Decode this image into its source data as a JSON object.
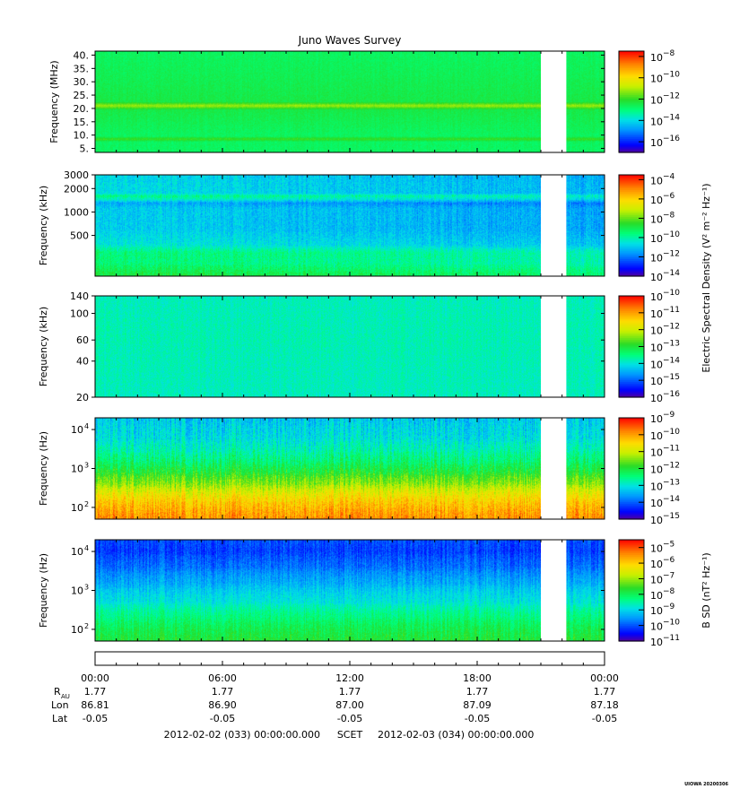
{
  "title": "Juno Waves Survey",
  "watermark": "UIOWA 20200306",
  "shared_colorbar_label": "Electric Spectral Density (V² m⁻² Hz⁻¹)",
  "gap": {
    "start_hour": 21.0,
    "end_hour": 22.2
  },
  "chart_data": [
    {
      "type": "heatmap",
      "ylabel": "Frequency (MHz)",
      "yscale": "linear",
      "ylim": [
        3.5,
        41.5
      ],
      "yticks": [
        {
          "v": 5,
          "t": "5."
        },
        {
          "v": 10,
          "t": "10."
        },
        {
          "v": 15,
          "t": "15."
        },
        {
          "v": 20,
          "t": "20."
        },
        {
          "v": 25,
          "t": "25."
        },
        {
          "v": 30,
          "t": "30."
        },
        {
          "v": 35,
          "t": "35."
        },
        {
          "v": 40,
          "t": "40."
        }
      ],
      "colorbar": {
        "exponents": [
          -16,
          -14,
          -12,
          -10,
          -8
        ],
        "min_exp": -17,
        "max_exp": -7.5,
        "label": ""
      },
      "profile": [
        {
          "f": 3.5,
          "c": 0.45
        },
        {
          "f": 7.5,
          "c": 0.45
        },
        {
          "f": 8.5,
          "c": 0.54
        },
        {
          "f": 9.5,
          "c": 0.45
        },
        {
          "f": 19.5,
          "c": 0.48
        },
        {
          "f": 21.0,
          "c": 0.62
        },
        {
          "f": 22.5,
          "c": 0.48
        },
        {
          "f": 41.5,
          "c": 0.45
        }
      ],
      "noise": 0.02,
      "time_trend": 0.0,
      "vstreak": 0.01
    },
    {
      "type": "heatmap",
      "ylabel": "Frequency (kHz)",
      "yscale": "log",
      "ylim": [
        150,
        3000
      ],
      "yticks": [
        {
          "v": 500,
          "t": "500"
        },
        {
          "v": 1000,
          "t": "1000"
        },
        {
          "v": 2000,
          "t": "2000"
        },
        {
          "v": 3000,
          "t": "3000"
        }
      ],
      "colorbar": {
        "exponents": [
          -14,
          -12,
          -10,
          -8,
          -6,
          -4
        ],
        "min_exp": -14,
        "max_exp": -3.5,
        "label": ""
      },
      "profile": [
        {
          "f": 150,
          "c": 0.5
        },
        {
          "f": 220,
          "c": 0.43
        },
        {
          "f": 300,
          "c": 0.43
        },
        {
          "f": 380,
          "c": 0.34
        },
        {
          "f": 600,
          "c": 0.3
        },
        {
          "f": 1100,
          "c": 0.3
        },
        {
          "f": 1300,
          "c": 0.25
        },
        {
          "f": 1450,
          "c": 0.36
        },
        {
          "f": 1600,
          "c": 0.42
        },
        {
          "f": 1750,
          "c": 0.32
        },
        {
          "f": 2200,
          "c": 0.32
        },
        {
          "f": 3000,
          "c": 0.31
        }
      ],
      "noise": 0.045,
      "time_trend": -0.06,
      "vstreak": 0.03
    },
    {
      "type": "heatmap",
      "ylabel": "Frequency (kHz)",
      "yscale": "log",
      "ylim": [
        20,
        140
      ],
      "yticks": [
        {
          "v": 20,
          "t": "20"
        },
        {
          "v": 40,
          "t": "40"
        },
        {
          "v": 60,
          "t": "60"
        },
        {
          "v": 100,
          "t": "100"
        },
        {
          "v": 140,
          "t": "140"
        }
      ],
      "colorbar": {
        "exponents": [
          -16,
          -15,
          -14,
          -13,
          -12,
          -11,
          -10
        ],
        "min_exp": -16,
        "max_exp": -10,
        "label": ""
      },
      "profile": [
        {
          "f": 20,
          "c": 0.36
        },
        {
          "f": 60,
          "c": 0.37
        },
        {
          "f": 140,
          "c": 0.36
        }
      ],
      "noise": 0.035,
      "time_trend": 0.0,
      "vstreak": 0.02
    },
    {
      "type": "heatmap",
      "ylabel": "Frequency (Hz)",
      "yscale": "log",
      "ylim": [
        50,
        20000
      ],
      "yticks": [
        {
          "v": 100,
          "t": "10",
          "sup": "2"
        },
        {
          "v": 1000,
          "t": "10",
          "sup": "3"
        },
        {
          "v": 10000,
          "t": "10",
          "sup": "4"
        }
      ],
      "colorbar": {
        "exponents": [
          -15,
          -14,
          -13,
          -12,
          -11,
          -10,
          -9
        ],
        "min_exp": -15,
        "max_exp": -9,
        "label": ""
      },
      "profile": [
        {
          "f": 50,
          "c": 0.85
        },
        {
          "f": 100,
          "c": 0.8
        },
        {
          "f": 200,
          "c": 0.72
        },
        {
          "f": 400,
          "c": 0.6
        },
        {
          "f": 800,
          "c": 0.5
        },
        {
          "f": 1500,
          "c": 0.43
        },
        {
          "f": 3000,
          "c": 0.37
        },
        {
          "f": 6000,
          "c": 0.32
        },
        {
          "f": 20000,
          "c": 0.28
        }
      ],
      "noise": 0.055,
      "time_trend": 0.0,
      "vstreak": 0.06
    },
    {
      "type": "heatmap",
      "ylabel": "Frequency (Hz)",
      "yscale": "log",
      "ylim": [
        50,
        20000
      ],
      "yticks": [
        {
          "v": 100,
          "t": "10",
          "sup": "2"
        },
        {
          "v": 1000,
          "t": "10",
          "sup": "3"
        },
        {
          "v": 10000,
          "t": "10",
          "sup": "4"
        }
      ],
      "colorbar": {
        "exponents": [
          -11,
          -10,
          -9,
          -8,
          -7,
          -6,
          -5
        ],
        "min_exp": -11,
        "max_exp": -4.5,
        "label": "B SD (nT² Hz⁻¹)"
      },
      "profile": [
        {
          "f": 50,
          "c": 0.5
        },
        {
          "f": 100,
          "c": 0.47
        },
        {
          "f": 200,
          "c": 0.42
        },
        {
          "f": 500,
          "c": 0.33
        },
        {
          "f": 1500,
          "c": 0.25
        },
        {
          "f": 4000,
          "c": 0.18
        },
        {
          "f": 10000,
          "c": 0.13
        },
        {
          "f": 20000,
          "c": 0.15
        }
      ],
      "noise": 0.04,
      "time_trend": 0.0,
      "vstreak": 0.04
    }
  ],
  "time_axis": {
    "range_hours": [
      0,
      24
    ],
    "ticks": [
      {
        "h": 0,
        "label": "00:00",
        "r": "1.77",
        "lon": "86.81",
        "lat": "-0.05"
      },
      {
        "h": 6,
        "label": "06:00",
        "r": "1.77",
        "lon": "86.90",
        "lat": "-0.05"
      },
      {
        "h": 12,
        "label": "12:00",
        "r": "1.77",
        "lon": "87.00",
        "lat": "-0.05"
      },
      {
        "h": 18,
        "label": "18:00",
        "r": "1.77",
        "lon": "87.09",
        "lat": "-0.05"
      },
      {
        "h": 24,
        "label": "00:00",
        "r": "1.77",
        "lon": "87.18",
        "lat": "-0.05"
      }
    ],
    "row_labels": {
      "r": "R",
      "r_sub": "AU",
      "lon": "Lon",
      "lat": "Lat"
    },
    "start_time": "2012-02-02 (033) 00:00:00.000",
    "scet": "SCET",
    "end_time": "2012-02-03 (034) 00:00:00.000"
  }
}
